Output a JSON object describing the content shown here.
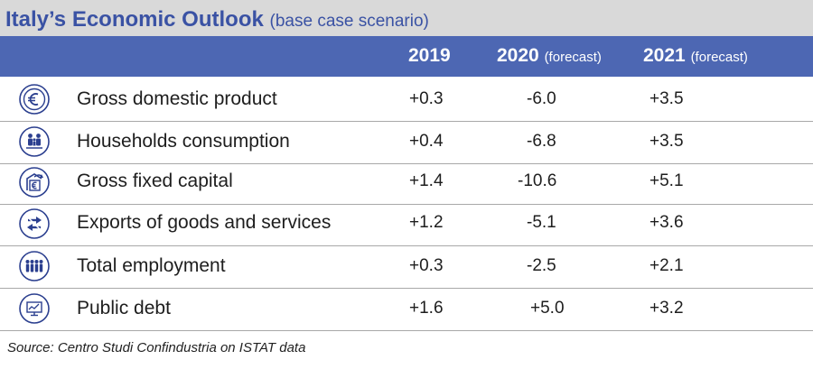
{
  "title": "Italy’s Economic Outlook",
  "subtitle": "(base case scenario)",
  "header": {
    "col1_year": "2019",
    "col2_year": "2020",
    "col2_note": "(forecast)",
    "col3_year": "2021",
    "col3_note": "(forecast)"
  },
  "rows": [
    {
      "icon": "euro-coin-icon",
      "label": "Gross domestic product",
      "v2019": "+0.3",
      "v2020": "-6.0",
      "v2021": "+3.5"
    },
    {
      "icon": "family-icon",
      "label": "Households consumption",
      "v2019": "+0.4",
      "v2020": "-6.8",
      "v2021": "+3.5"
    },
    {
      "icon": "capital-investment-icon",
      "label": "Gross fixed capital",
      "v2019": "+1.4",
      "v2020": "-10.6",
      "v2021": "+5.1"
    },
    {
      "icon": "exchange-arrows-icon",
      "label": "Exports of goods and services",
      "v2019": "+1.2",
      "v2020": "-5.1",
      "v2021": "+3.6"
    },
    {
      "icon": "people-group-icon",
      "label": "Total employment",
      "v2019": "+0.3",
      "v2020": "-2.5",
      "v2021": "+2.1"
    },
    {
      "icon": "monitor-chart-icon",
      "label": "Public debt",
      "v2019": "+1.6",
      "v2020": "+5.0",
      "v2021": "+3.2"
    }
  ],
  "source": "Source: Centro Studi Confindustria on ISTAT data",
  "colors": {
    "title": "#3a52a4",
    "header_bg": "#4d67b3",
    "title_bg": "#d9d9d9"
  },
  "chart_data": {
    "type": "table",
    "title": "Italy’s Economic Outlook",
    "subtitle": "(base case scenario)",
    "columns": [
      "2019",
      "2020 (forecast)",
      "2021 (forecast)"
    ],
    "categories": [
      "Gross domestic product",
      "Households consumption",
      "Gross fixed capital",
      "Exports of goods and services",
      "Total employment",
      "Public debt"
    ],
    "series": [
      {
        "name": "2019",
        "values": [
          0.3,
          0.4,
          1.4,
          1.2,
          0.3,
          1.6
        ]
      },
      {
        "name": "2020 (forecast)",
        "values": [
          -6.0,
          -6.8,
          -10.6,
          -5.1,
          -2.5,
          5.0
        ]
      },
      {
        "name": "2021 (forecast)",
        "values": [
          3.5,
          3.5,
          5.1,
          3.6,
          2.1,
          3.2
        ]
      }
    ]
  }
}
